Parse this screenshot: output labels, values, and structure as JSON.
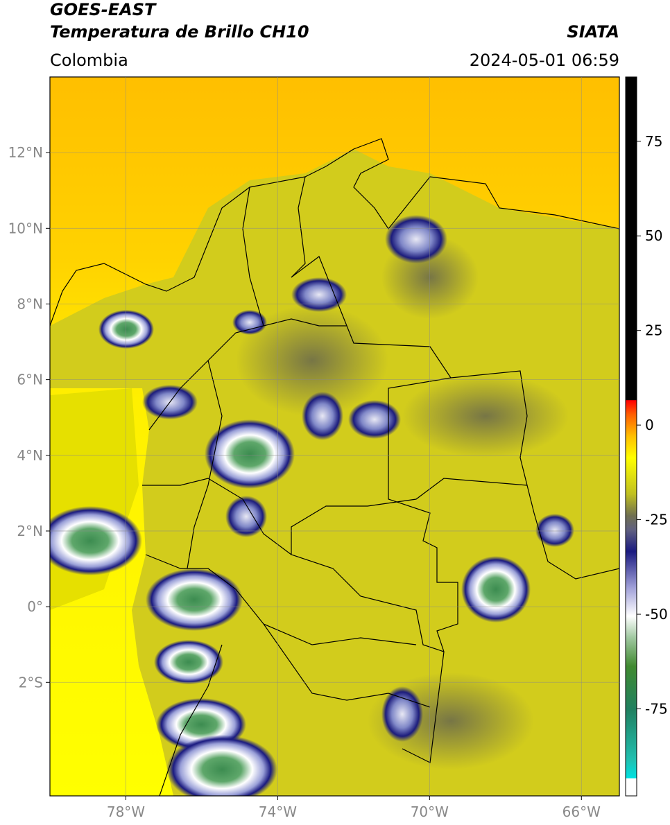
{
  "header": {
    "satellite": "GOES-EAST",
    "product": "Temperatura de Brillo CH10",
    "source": "SIATA",
    "region": "Colombia",
    "datetime": "2024-05-01 06:59"
  },
  "map": {
    "xlim": [
      -80,
      -65
    ],
    "ylim": [
      -5,
      14
    ],
    "xticks": [
      {
        "value": -78,
        "label": "78°W"
      },
      {
        "value": -74,
        "label": "74°W"
      },
      {
        "value": -70,
        "label": "70°W"
      },
      {
        "value": -66,
        "label": "66°W"
      }
    ],
    "yticks": [
      {
        "value": -2,
        "label": "2°S"
      },
      {
        "value": 0,
        "label": "0°"
      },
      {
        "value": 2,
        "label": "2°N"
      },
      {
        "value": 4,
        "label": "4°N"
      },
      {
        "value": 6,
        "label": "6°N"
      },
      {
        "value": 8,
        "label": "8°N"
      },
      {
        "value": 10,
        "label": "10°N"
      },
      {
        "value": 12,
        "label": "12°N"
      }
    ],
    "grid": true
  },
  "colorbar": {
    "clim": [
      -98,
      92
    ],
    "ticks": [
      -75,
      -50,
      -25,
      0,
      25,
      50,
      75
    ]
  }
}
